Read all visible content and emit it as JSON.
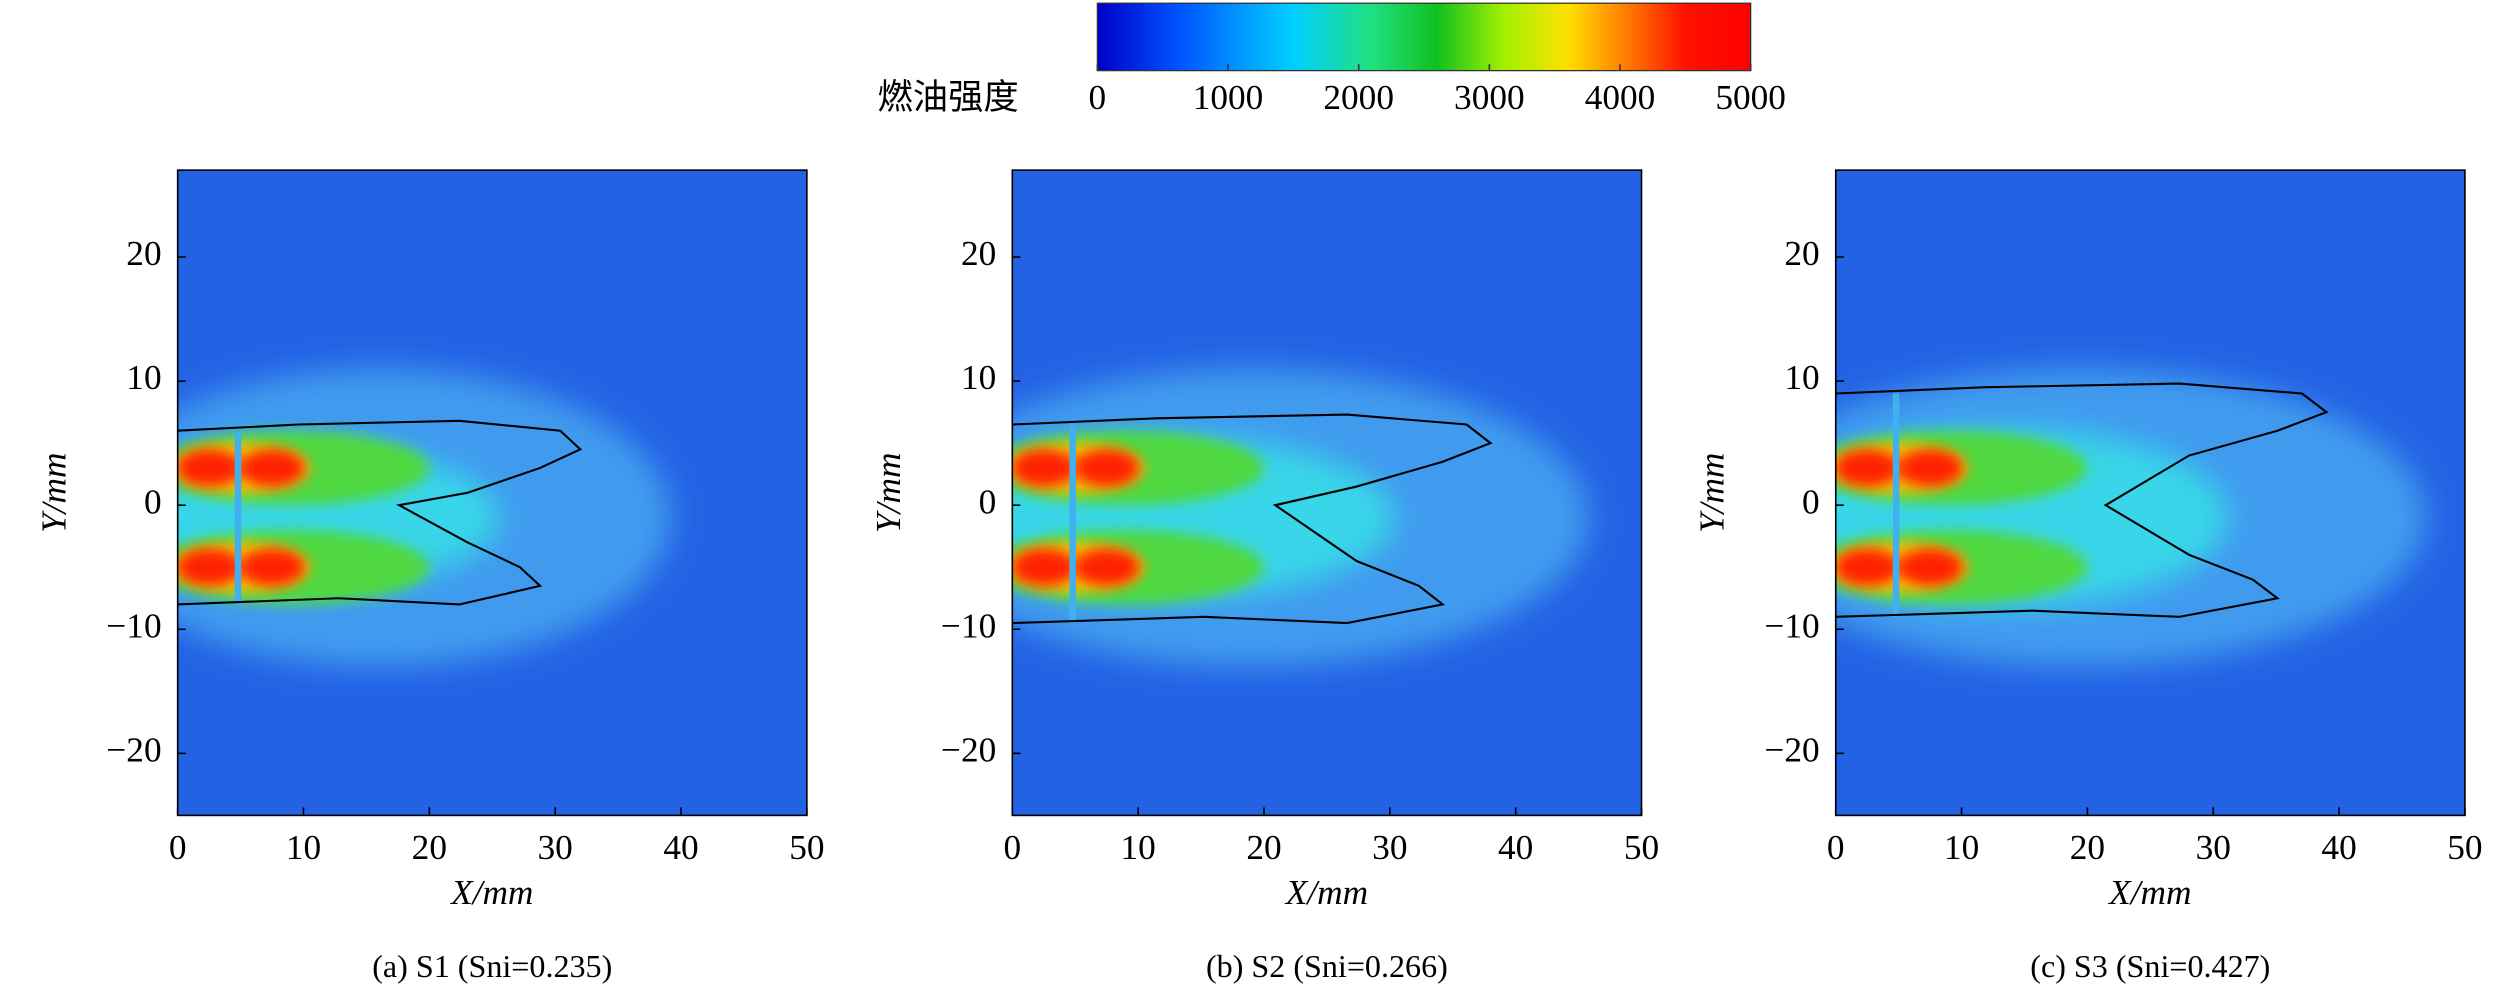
{
  "colorbar": {
    "label": "燃油强度",
    "lim": [
      0,
      5000
    ],
    "ticks": [
      0,
      1000,
      2000,
      3000,
      4000,
      5000
    ]
  },
  "chart_data": [
    {
      "type": "heatmap",
      "caption": "(a) S1 (Sni=0.235)",
      "x_label": "X/mm",
      "y_label": "Y/mm",
      "xlim": [
        0,
        50
      ],
      "xticks": [
        0,
        10,
        20,
        30,
        40,
        50
      ],
      "ylim": [
        -25,
        27
      ],
      "yticks": [
        {
          "value": -20,
          "label": "−20"
        },
        {
          "value": -10,
          "label": "−10"
        },
        0,
        10,
        20
      ]
    },
    {
      "type": "heatmap",
      "caption": "(b) S2 (Sni=0.266)",
      "x_label": "X/mm",
      "y_label": "Y/mm",
      "xlim": [
        0,
        50
      ],
      "xticks": [
        0,
        10,
        20,
        30,
        40,
        50
      ],
      "ylim": [
        -25,
        27
      ],
      "yticks": [
        {
          "value": -20,
          "label": "−20"
        },
        {
          "value": -10,
          "label": "−10"
        },
        0,
        10,
        20
      ]
    },
    {
      "type": "heatmap",
      "caption": "(c) S3 (Sni=0.427)",
      "x_label": "X/mm",
      "y_label": "Y/mm",
      "xlim": [
        0,
        50
      ],
      "xticks": [
        0,
        10,
        20,
        30,
        40,
        50
      ],
      "ylim": [
        -25,
        27
      ],
      "yticks": [
        {
          "value": -20,
          "label": "−20"
        },
        {
          "value": -10,
          "label": "−10"
        },
        0,
        10,
        20
      ]
    }
  ]
}
